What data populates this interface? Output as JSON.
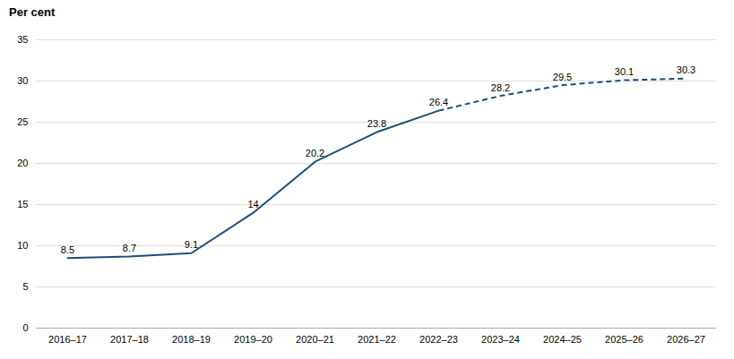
{
  "chart_data": {
    "type": "line",
    "ylabel": "Per cent",
    "categories": [
      "2016–17",
      "2017–18",
      "2018–19",
      "2019–20",
      "2020–21",
      "2021–22",
      "2022–23",
      "2023–24",
      "2024–25",
      "2025–26",
      "2026–27"
    ],
    "series": [
      {
        "color": "#1F4E79",
        "line_style": "solid",
        "values": [
          8.5,
          8.7,
          9.1,
          14.0,
          20.2,
          23.8,
          26.4,
          null,
          null,
          null,
          null
        ]
      },
      {
        "color": "#1F4E79",
        "line_style": "dashed",
        "values": [
          null,
          null,
          null,
          null,
          null,
          null,
          26.4,
          28.2,
          29.5,
          30.1,
          30.3
        ]
      }
    ],
    "ylim": [
      0,
      35
    ],
    "yticks": [
      0,
      5,
      10,
      15,
      20,
      25,
      30,
      35
    ],
    "grid": true,
    "data_labels": true
  }
}
